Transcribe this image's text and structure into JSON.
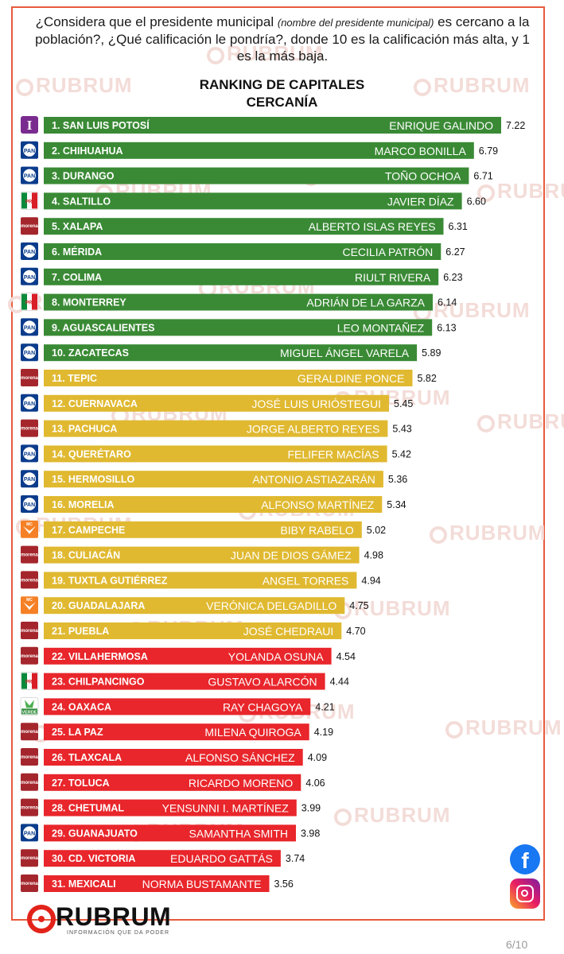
{
  "question": {
    "part1": "¿Considera que el presidente municipal",
    "part2": "(nombre del presidente municipal)",
    "part3": "es cercano a la población?, ¿Qué calificación le pondría?, donde 10 es la calificación más alta, y 1 es la más baja."
  },
  "brand": {
    "name": "RUBRUM",
    "tagline": "INFORMACIÓN QUE DA PODER",
    "watermark": "RUBRUM"
  },
  "social": {
    "facebook_icon": "facebook-icon",
    "instagram_icon": "instagram-icon",
    "facebook_glyph": "f"
  },
  "page_indicator": "6/10",
  "colors": {
    "green": "#3a8a35",
    "yellow": "#e0b931",
    "red": "#e8262b",
    "accent": "#e85a3c"
  },
  "party_labels": {
    "PT": "I",
    "PAN": "PAN",
    "PRI": "PRI",
    "MORENA": "morena",
    "MC": "MC",
    "PVEM": "VERDE"
  },
  "chart_data": {
    "type": "bar",
    "orientation": "horizontal",
    "title": "RANKING DE CAPITALES",
    "subtitle": "CERCANÍA",
    "xlim": [
      0,
      7.22
    ],
    "color_groups": [
      {
        "name": "green",
        "ranks": [
          1,
          10
        ]
      },
      {
        "name": "yellow",
        "ranks": [
          11,
          21
        ]
      },
      {
        "name": "red",
        "ranks": [
          22,
          31
        ]
      }
    ],
    "rows": [
      {
        "rank": "1. SAN LUIS POTOSÍ",
        "mayor": "ENRIQUE GALINDO",
        "value": 7.22,
        "value_label": "7.22",
        "party": "PT",
        "color": "green"
      },
      {
        "rank": "2. CHIHUAHUA",
        "mayor": "MARCO BONILLA",
        "value": 6.79,
        "value_label": "6.79",
        "party": "PAN",
        "color": "green"
      },
      {
        "rank": "3. DURANGO",
        "mayor": "TOÑO OCHOA",
        "value": 6.71,
        "value_label": "6.71",
        "party": "PAN",
        "color": "green"
      },
      {
        "rank": "4. SALTILLO",
        "mayor": "JAVIER DÍAZ",
        "value": 6.6,
        "value_label": "6.60",
        "party": "PRI",
        "color": "green"
      },
      {
        "rank": "5. XALAPA",
        "mayor": "ALBERTO ISLAS REYES",
        "value": 6.31,
        "value_label": "6.31",
        "party": "MORENA",
        "color": "green"
      },
      {
        "rank": "6. MÉRIDA",
        "mayor": "CECILIA PATRÓN",
        "value": 6.27,
        "value_label": "6.27",
        "party": "PAN",
        "color": "green"
      },
      {
        "rank": "7. COLIMA",
        "mayor": "RIULT RIVERA",
        "value": 6.23,
        "value_label": "6.23",
        "party": "PAN",
        "color": "green"
      },
      {
        "rank": "8. MONTERREY",
        "mayor": "ADRIÁN DE LA GARZA",
        "value": 6.14,
        "value_label": "6.14",
        "party": "PRI",
        "color": "green"
      },
      {
        "rank": "9. AGUASCALIENTES",
        "mayor": "LEO MONTAÑEZ",
        "value": 6.13,
        "value_label": "6.13",
        "party": "PAN",
        "color": "green"
      },
      {
        "rank": "10. ZACATECAS",
        "mayor": "MIGUEL ÁNGEL VARELA",
        "value": 5.89,
        "value_label": "5.89",
        "party": "PAN",
        "color": "green"
      },
      {
        "rank": "11. TEPIC",
        "mayor": "GERALDINE PONCE",
        "value": 5.82,
        "value_label": "5.82",
        "party": "MORENA",
        "color": "yellow"
      },
      {
        "rank": "12. CUERNAVACA",
        "mayor": "JOSÉ LUIS URIÓSTEGUI",
        "value": 5.45,
        "value_label": "5.45",
        "party": "PAN",
        "color": "yellow"
      },
      {
        "rank": "13. PACHUCA",
        "mayor": "JORGE ALBERTO REYES",
        "value": 5.43,
        "value_label": "5.43",
        "party": "MORENA",
        "color": "yellow"
      },
      {
        "rank": "14. QUERÉTARO",
        "mayor": "FELIFER MACÍAS",
        "value": 5.42,
        "value_label": "5.42",
        "party": "PAN",
        "color": "yellow"
      },
      {
        "rank": "15. HERMOSILLO",
        "mayor": "ANTONIO ASTIAZARÁN",
        "value": 5.36,
        "value_label": "5.36",
        "party": "PAN",
        "color": "yellow"
      },
      {
        "rank": "16. MORELIA",
        "mayor": "ALFONSO MARTÍNEZ",
        "value": 5.34,
        "value_label": "5.34",
        "party": "PAN",
        "color": "yellow"
      },
      {
        "rank": "17. CAMPECHE",
        "mayor": "BIBY RABELO",
        "value": 5.02,
        "value_label": "5.02",
        "party": "MC",
        "color": "yellow"
      },
      {
        "rank": "18. CULIACÁN",
        "mayor": "JUAN DE DIOS GÁMEZ",
        "value": 4.98,
        "value_label": "4.98",
        "party": "MORENA",
        "color": "yellow"
      },
      {
        "rank": "19. TUXTLA GUTIÉRREZ",
        "mayor": "ANGEL TORRES",
        "value": 4.94,
        "value_label": "4.94",
        "party": "MORENA",
        "color": "yellow"
      },
      {
        "rank": "20. GUADALAJARA",
        "mayor": "VERÓNICA DELGADILLO",
        "value": 4.75,
        "value_label": "4.75",
        "party": "MC",
        "color": "yellow"
      },
      {
        "rank": "21. PUEBLA",
        "mayor": "JOSÉ CHEDRAUI",
        "value": 4.7,
        "value_label": "4.70",
        "party": "MORENA",
        "color": "yellow"
      },
      {
        "rank": "22. VILLAHERMOSA",
        "mayor": "YOLANDA OSUNA",
        "value": 4.54,
        "value_label": "4.54",
        "party": "MORENA",
        "color": "red"
      },
      {
        "rank": "23. CHILPANCINGO",
        "mayor": "GUSTAVO ALARCÓN",
        "value": 4.44,
        "value_label": "4.44",
        "party": "PRI",
        "color": "red"
      },
      {
        "rank": "24. OAXACA",
        "mayor": "RAY CHAGOYA",
        "value": 4.21,
        "value_label": "4.21",
        "party": "PVEM",
        "color": "red"
      },
      {
        "rank": "25. LA PAZ",
        "mayor": "MILENA QUIROGA",
        "value": 4.19,
        "value_label": "4.19",
        "party": "MORENA",
        "color": "red"
      },
      {
        "rank": "26. TLAXCALA",
        "mayor": "ALFONSO SÁNCHEZ",
        "value": 4.09,
        "value_label": "4.09",
        "party": "MORENA",
        "color": "red"
      },
      {
        "rank": "27. TOLUCA",
        "mayor": "RICARDO MORENO",
        "value": 4.06,
        "value_label": "4.06",
        "party": "MORENA",
        "color": "red"
      },
      {
        "rank": "28. CHETUMAL",
        "mayor": "YENSUNNI I. MARTÍNEZ",
        "value": 3.99,
        "value_label": "3.99",
        "party": "MORENA",
        "color": "red"
      },
      {
        "rank": "29. GUANAJUATO",
        "mayor": "SAMANTHA SMITH",
        "value": 3.98,
        "value_label": "3.98",
        "party": "PAN",
        "color": "red"
      },
      {
        "rank": "30. CD. VICTORIA",
        "mayor": "EDUARDO GATTÁS",
        "value": 3.74,
        "value_label": "3.74",
        "party": "MORENA",
        "color": "red"
      },
      {
        "rank": "31. MEXICALI",
        "mayor": "NORMA BUSTAMANTE",
        "value": 3.56,
        "value_label": "3.56",
        "party": "MORENA",
        "color": "red"
      }
    ]
  }
}
